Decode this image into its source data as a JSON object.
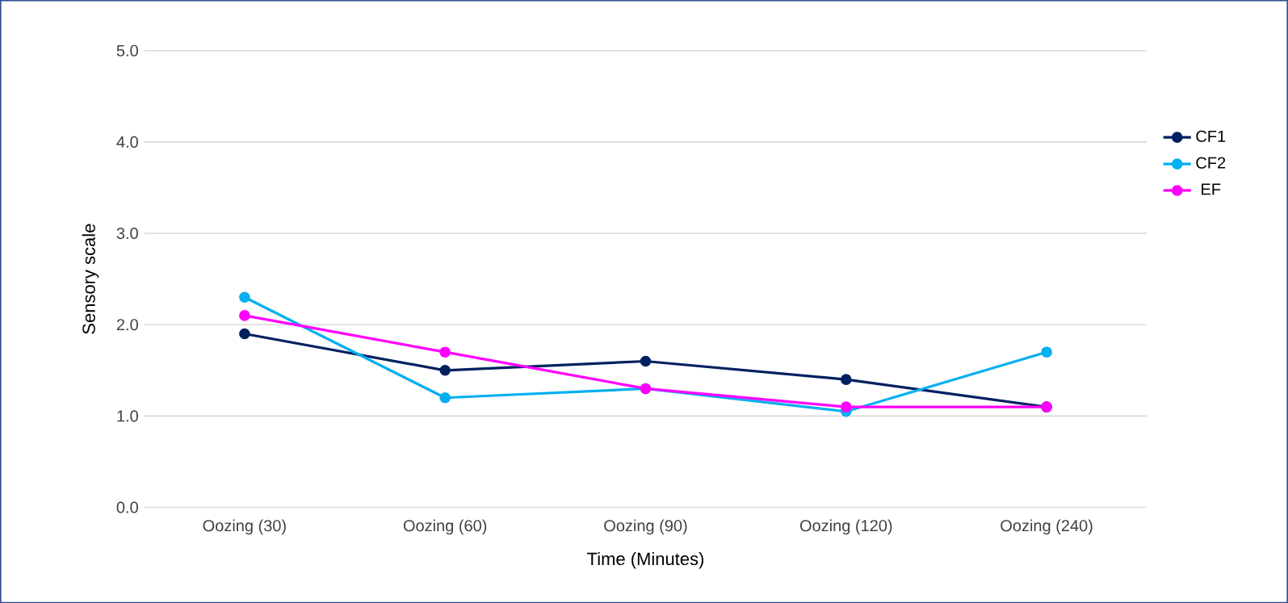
{
  "chart_data": {
    "type": "line",
    "xlabel": "Time (Minutes)",
    "ylabel": "Sensory scale",
    "categories": [
      "Oozing (30)",
      "Oozing (60)",
      "Oozing (90)",
      "Oozing (120)",
      "Oozing (240)"
    ],
    "series": [
      {
        "name": "CF1",
        "color": "#002060",
        "values": [
          1.9,
          1.5,
          1.6,
          1.4,
          1.1
        ]
      },
      {
        "name": "CF2",
        "color": "#00b0f0",
        "values": [
          2.3,
          1.2,
          1.3,
          1.05,
          1.7
        ]
      },
      {
        "name": "EF",
        "color": "#ff00ff",
        "values": [
          2.1,
          1.7,
          1.3,
          1.1,
          1.1
        ]
      }
    ],
    "ylim": [
      0,
      5
    ],
    "yticks": [
      {
        "value": 0,
        "label": "0.0"
      },
      {
        "value": 1,
        "label": "1.0"
      },
      {
        "value": 2,
        "label": "2.0"
      },
      {
        "value": 3,
        "label": "3.0"
      },
      {
        "value": 4,
        "label": "4.0"
      },
      {
        "value": 5,
        "label": "5.0"
      }
    ],
    "grid": "y",
    "legend": "right",
    "marker": "circle",
    "line_style": "solid"
  }
}
